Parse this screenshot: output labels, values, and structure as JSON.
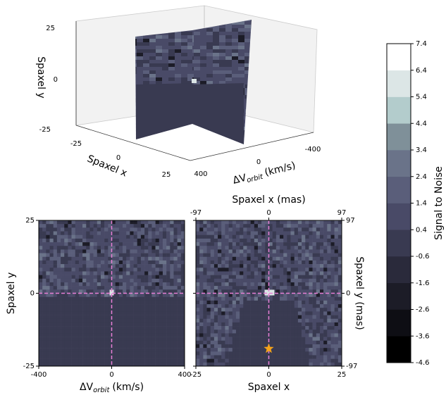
{
  "chart_data": [
    {
      "type": "cube3d",
      "zlabel": "Spaxel y",
      "zticks": [
        25,
        0,
        -25
      ],
      "xlabel": "Spaxel x",
      "xticks": [
        -25,
        0,
        25
      ],
      "vlabel": {
        "text": "ΔV",
        "sub": "orbit",
        "unit": "(km/s)"
      },
      "vticks": [
        400,
        0,
        -400
      ]
    },
    {
      "type": "image",
      "xlim": [
        -400,
        400
      ],
      "xticks": [
        -400,
        0,
        400
      ],
      "ylim": [
        -25,
        25
      ],
      "yticks": [
        -25,
        0,
        25
      ],
      "xlabel": {
        "text": "ΔV",
        "sub": "orbit",
        "unit": "(km/s)"
      },
      "ylabel": "Spaxel y",
      "crosshair": {
        "x": 0,
        "y": 0,
        "color": "#e87fd6"
      }
    },
    {
      "type": "image",
      "xlim": [
        -25,
        25
      ],
      "xticks": [
        -25,
        0,
        25
      ],
      "ylim": [
        -25,
        25
      ],
      "yticks": [
        -25,
        0,
        25
      ],
      "xlabel": "Spaxel x",
      "x2label": "Spaxel x (mas)",
      "x2lim": [
        -97,
        97
      ],
      "x2ticks": [
        -97,
        0,
        97
      ],
      "y2label": "Spaxel y (mas)",
      "y2lim": [
        -97,
        97
      ],
      "y2ticks": [
        97,
        0,
        -97
      ],
      "crosshair": {
        "x": 0,
        "y": 0,
        "color": "#e87fd6"
      },
      "star": {
        "x": 0,
        "y": -19,
        "color": "#f5a31a"
      }
    },
    {
      "type": "colorbar",
      "label": "Signal to Noise",
      "lim": [
        -4.6,
        7.4
      ],
      "ticks": [
        7.4,
        6.4,
        5.4,
        4.4,
        3.4,
        2.4,
        1.4,
        0.4,
        -0.6,
        -1.6,
        -2.6,
        -3.6,
        -4.6
      ],
      "colors": [
        "#000000",
        "#0e0e14",
        "#1c1c27",
        "#2a2a3b",
        "#393a51",
        "#494a67",
        "#5a5e7a",
        "#6a7389",
        "#7f9099",
        "#b3cccc",
        "#dce6e6",
        "#ffffff"
      ]
    }
  ]
}
